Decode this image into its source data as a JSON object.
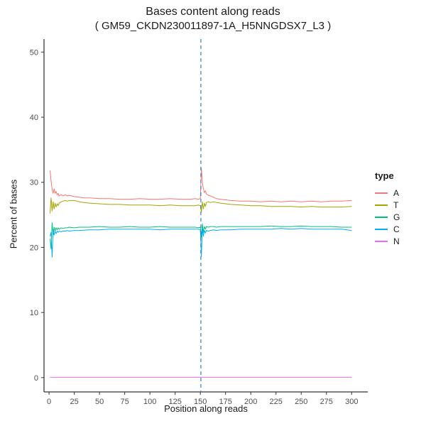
{
  "chart_data": {
    "type": "line",
    "title": "Bases content along reads",
    "subtitle": "( GM59_CKDN230011897-1A_H5NNGDSX7_L3 )",
    "xlabel": "Position along reads",
    "ylabel": "Percent of bases",
    "x_ticks": [
      0,
      25,
      50,
      75,
      100,
      125,
      150,
      175,
      200,
      225,
      250,
      275,
      300
    ],
    "y_ticks": [
      0,
      10,
      20,
      30,
      40,
      50
    ],
    "xlim": [
      0,
      300
    ],
    "ylim": [
      0,
      50
    ],
    "render_xlim": [
      -5,
      316
    ],
    "render_ylim": [
      -2.2,
      52
    ],
    "grid": "off",
    "divider": {
      "x": 150.5,
      "color": "#3182bd",
      "dash": "5,4"
    },
    "legend": {
      "title": "type",
      "position": "right"
    },
    "series": [
      {
        "name": "A",
        "color": "#F8766D",
        "points": [
          [
            1,
            31.8
          ],
          [
            2,
            30.3
          ],
          [
            3,
            28.9
          ],
          [
            4,
            28.3
          ],
          [
            5,
            29.0
          ],
          [
            6,
            28.3
          ],
          [
            7,
            28.6
          ],
          [
            8,
            28.1
          ],
          [
            9,
            28.3
          ],
          [
            10,
            27.9
          ],
          [
            12,
            28.1
          ],
          [
            14,
            27.9
          ],
          [
            16,
            28.1
          ],
          [
            18,
            27.9
          ],
          [
            20,
            28.0
          ],
          [
            25,
            27.8
          ],
          [
            30,
            27.7
          ],
          [
            35,
            27.6
          ],
          [
            40,
            27.6
          ],
          [
            50,
            27.5
          ],
          [
            60,
            27.5
          ],
          [
            70,
            27.4
          ],
          [
            80,
            27.4
          ],
          [
            90,
            27.5
          ],
          [
            100,
            27.4
          ],
          [
            110,
            27.4
          ],
          [
            120,
            27.5
          ],
          [
            130,
            27.4
          ],
          [
            140,
            27.4
          ],
          [
            145,
            27.5
          ],
          [
            148,
            27.4
          ],
          [
            150,
            27.5
          ],
          [
            151,
            32.2
          ],
          [
            152,
            30.0
          ],
          [
            153,
            29.0
          ],
          [
            154,
            28.4
          ],
          [
            155,
            28.7
          ],
          [
            156,
            28.2
          ],
          [
            158,
            28.0
          ],
          [
            160,
            27.9
          ],
          [
            163,
            27.7
          ],
          [
            166,
            27.5
          ],
          [
            170,
            27.4
          ],
          [
            175,
            27.3
          ],
          [
            180,
            27.2
          ],
          [
            190,
            27.1
          ],
          [
            200,
            27.1
          ],
          [
            210,
            27.0
          ],
          [
            220,
            27.1
          ],
          [
            230,
            27.0
          ],
          [
            240,
            27.1
          ],
          [
            250,
            27.0
          ],
          [
            260,
            27.1
          ],
          [
            270,
            27.0
          ],
          [
            280,
            27.1
          ],
          [
            290,
            27.1
          ],
          [
            300,
            27.2
          ]
        ]
      },
      {
        "name": "T",
        "color": "#A3A500",
        "points": [
          [
            1,
            25.2
          ],
          [
            2,
            27.6
          ],
          [
            3,
            25.6
          ],
          [
            4,
            27.0
          ],
          [
            5,
            25.9
          ],
          [
            6,
            26.8
          ],
          [
            7,
            26.2
          ],
          [
            8,
            26.7
          ],
          [
            9,
            26.4
          ],
          [
            10,
            26.8
          ],
          [
            12,
            27.0
          ],
          [
            14,
            27.1
          ],
          [
            16,
            27.2
          ],
          [
            18,
            27.1
          ],
          [
            20,
            27.2
          ],
          [
            25,
            27.2
          ],
          [
            30,
            27.0
          ],
          [
            35,
            26.9
          ],
          [
            40,
            26.8
          ],
          [
            50,
            26.7
          ],
          [
            60,
            26.6
          ],
          [
            70,
            26.6
          ],
          [
            80,
            26.5
          ],
          [
            90,
            26.5
          ],
          [
            100,
            26.5
          ],
          [
            110,
            26.4
          ],
          [
            120,
            26.5
          ],
          [
            130,
            26.4
          ],
          [
            140,
            26.4
          ],
          [
            145,
            26.4
          ],
          [
            148,
            26.5
          ],
          [
            150,
            26.4
          ],
          [
            151,
            25.4
          ],
          [
            152,
            27.0
          ],
          [
            153,
            25.9
          ],
          [
            154,
            26.8
          ],
          [
            155,
            26.3
          ],
          [
            156,
            26.9
          ],
          [
            158,
            27.0
          ],
          [
            160,
            26.9
          ],
          [
            163,
            27.0
          ],
          [
            166,
            26.9
          ],
          [
            170,
            26.8
          ],
          [
            175,
            26.7
          ],
          [
            180,
            26.6
          ],
          [
            190,
            26.5
          ],
          [
            200,
            26.4
          ],
          [
            210,
            26.4
          ],
          [
            220,
            26.3
          ],
          [
            230,
            26.3
          ],
          [
            240,
            26.3
          ],
          [
            250,
            26.2
          ],
          [
            260,
            26.3
          ],
          [
            270,
            26.2
          ],
          [
            280,
            26.2
          ],
          [
            290,
            26.2
          ],
          [
            300,
            26.3
          ]
        ]
      },
      {
        "name": "G",
        "color": "#00BF7D",
        "points": [
          [
            1,
            21.3
          ],
          [
            2,
            19.8
          ],
          [
            3,
            23.8
          ],
          [
            4,
            21.9
          ],
          [
            5,
            23.1
          ],
          [
            6,
            22.5
          ],
          [
            7,
            23.0
          ],
          [
            8,
            22.7
          ],
          [
            9,
            23.0
          ],
          [
            10,
            22.8
          ],
          [
            12,
            23.0
          ],
          [
            14,
            22.9
          ],
          [
            16,
            23.0
          ],
          [
            18,
            23.0
          ],
          [
            20,
            23.1
          ],
          [
            25,
            23.0
          ],
          [
            30,
            23.1
          ],
          [
            40,
            23.1
          ],
          [
            50,
            23.2
          ],
          [
            60,
            23.1
          ],
          [
            70,
            23.1
          ],
          [
            80,
            23.2
          ],
          [
            90,
            23.1
          ],
          [
            100,
            23.1
          ],
          [
            110,
            23.2
          ],
          [
            120,
            23.1
          ],
          [
            130,
            23.1
          ],
          [
            140,
            23.1
          ],
          [
            145,
            23.1
          ],
          [
            148,
            23.0
          ],
          [
            150,
            23.1
          ],
          [
            151,
            21.6
          ],
          [
            152,
            23.6
          ],
          [
            153,
            22.3
          ],
          [
            154,
            23.2
          ],
          [
            155,
            22.8
          ],
          [
            156,
            23.2
          ],
          [
            158,
            23.1
          ],
          [
            160,
            23.2
          ],
          [
            163,
            23.2
          ],
          [
            166,
            23.1
          ],
          [
            170,
            23.2
          ],
          [
            180,
            23.2
          ],
          [
            190,
            23.2
          ],
          [
            200,
            23.2
          ],
          [
            210,
            23.2
          ],
          [
            220,
            23.3
          ],
          [
            230,
            23.2
          ],
          [
            240,
            23.2
          ],
          [
            250,
            23.3
          ],
          [
            260,
            23.2
          ],
          [
            270,
            23.2
          ],
          [
            280,
            23.2
          ],
          [
            290,
            23.1
          ],
          [
            300,
            23.1
          ]
        ]
      },
      {
        "name": "C",
        "color": "#00B0F6",
        "points": [
          [
            1,
            21.7
          ],
          [
            2,
            22.3
          ],
          [
            3,
            18.5
          ],
          [
            4,
            22.7
          ],
          [
            5,
            21.9
          ],
          [
            6,
            22.5
          ],
          [
            7,
            22.1
          ],
          [
            8,
            22.5
          ],
          [
            9,
            22.3
          ],
          [
            10,
            22.5
          ],
          [
            12,
            22.4
          ],
          [
            14,
            22.5
          ],
          [
            16,
            22.5
          ],
          [
            18,
            22.6
          ],
          [
            20,
            22.5
          ],
          [
            25,
            22.6
          ],
          [
            30,
            22.6
          ],
          [
            40,
            22.7
          ],
          [
            50,
            22.7
          ],
          [
            60,
            22.8
          ],
          [
            70,
            22.8
          ],
          [
            80,
            22.8
          ],
          [
            90,
            22.8
          ],
          [
            100,
            22.8
          ],
          [
            110,
            22.7
          ],
          [
            120,
            22.8
          ],
          [
            130,
            22.8
          ],
          [
            140,
            22.8
          ],
          [
            145,
            22.8
          ],
          [
            148,
            22.8
          ],
          [
            150,
            22.7
          ],
          [
            151,
            18.6
          ],
          [
            152,
            23.0
          ],
          [
            153,
            21.7
          ],
          [
            154,
            22.6
          ],
          [
            155,
            22.2
          ],
          [
            156,
            22.6
          ],
          [
            158,
            22.5
          ],
          [
            160,
            22.6
          ],
          [
            163,
            22.7
          ],
          [
            166,
            22.6
          ],
          [
            170,
            22.7
          ],
          [
            180,
            22.7
          ],
          [
            190,
            22.8
          ],
          [
            200,
            22.8
          ],
          [
            210,
            22.8
          ],
          [
            220,
            22.8
          ],
          [
            230,
            22.9
          ],
          [
            240,
            22.8
          ],
          [
            250,
            22.9
          ],
          [
            260,
            22.8
          ],
          [
            270,
            22.8
          ],
          [
            280,
            22.8
          ],
          [
            290,
            22.8
          ],
          [
            300,
            22.6
          ]
        ]
      },
      {
        "name": "N",
        "color": "#E76BF3",
        "points": [
          [
            1,
            0.05
          ],
          [
            150,
            0.05
          ],
          [
            151,
            0.05
          ],
          [
            300,
            0.05
          ]
        ]
      }
    ]
  }
}
